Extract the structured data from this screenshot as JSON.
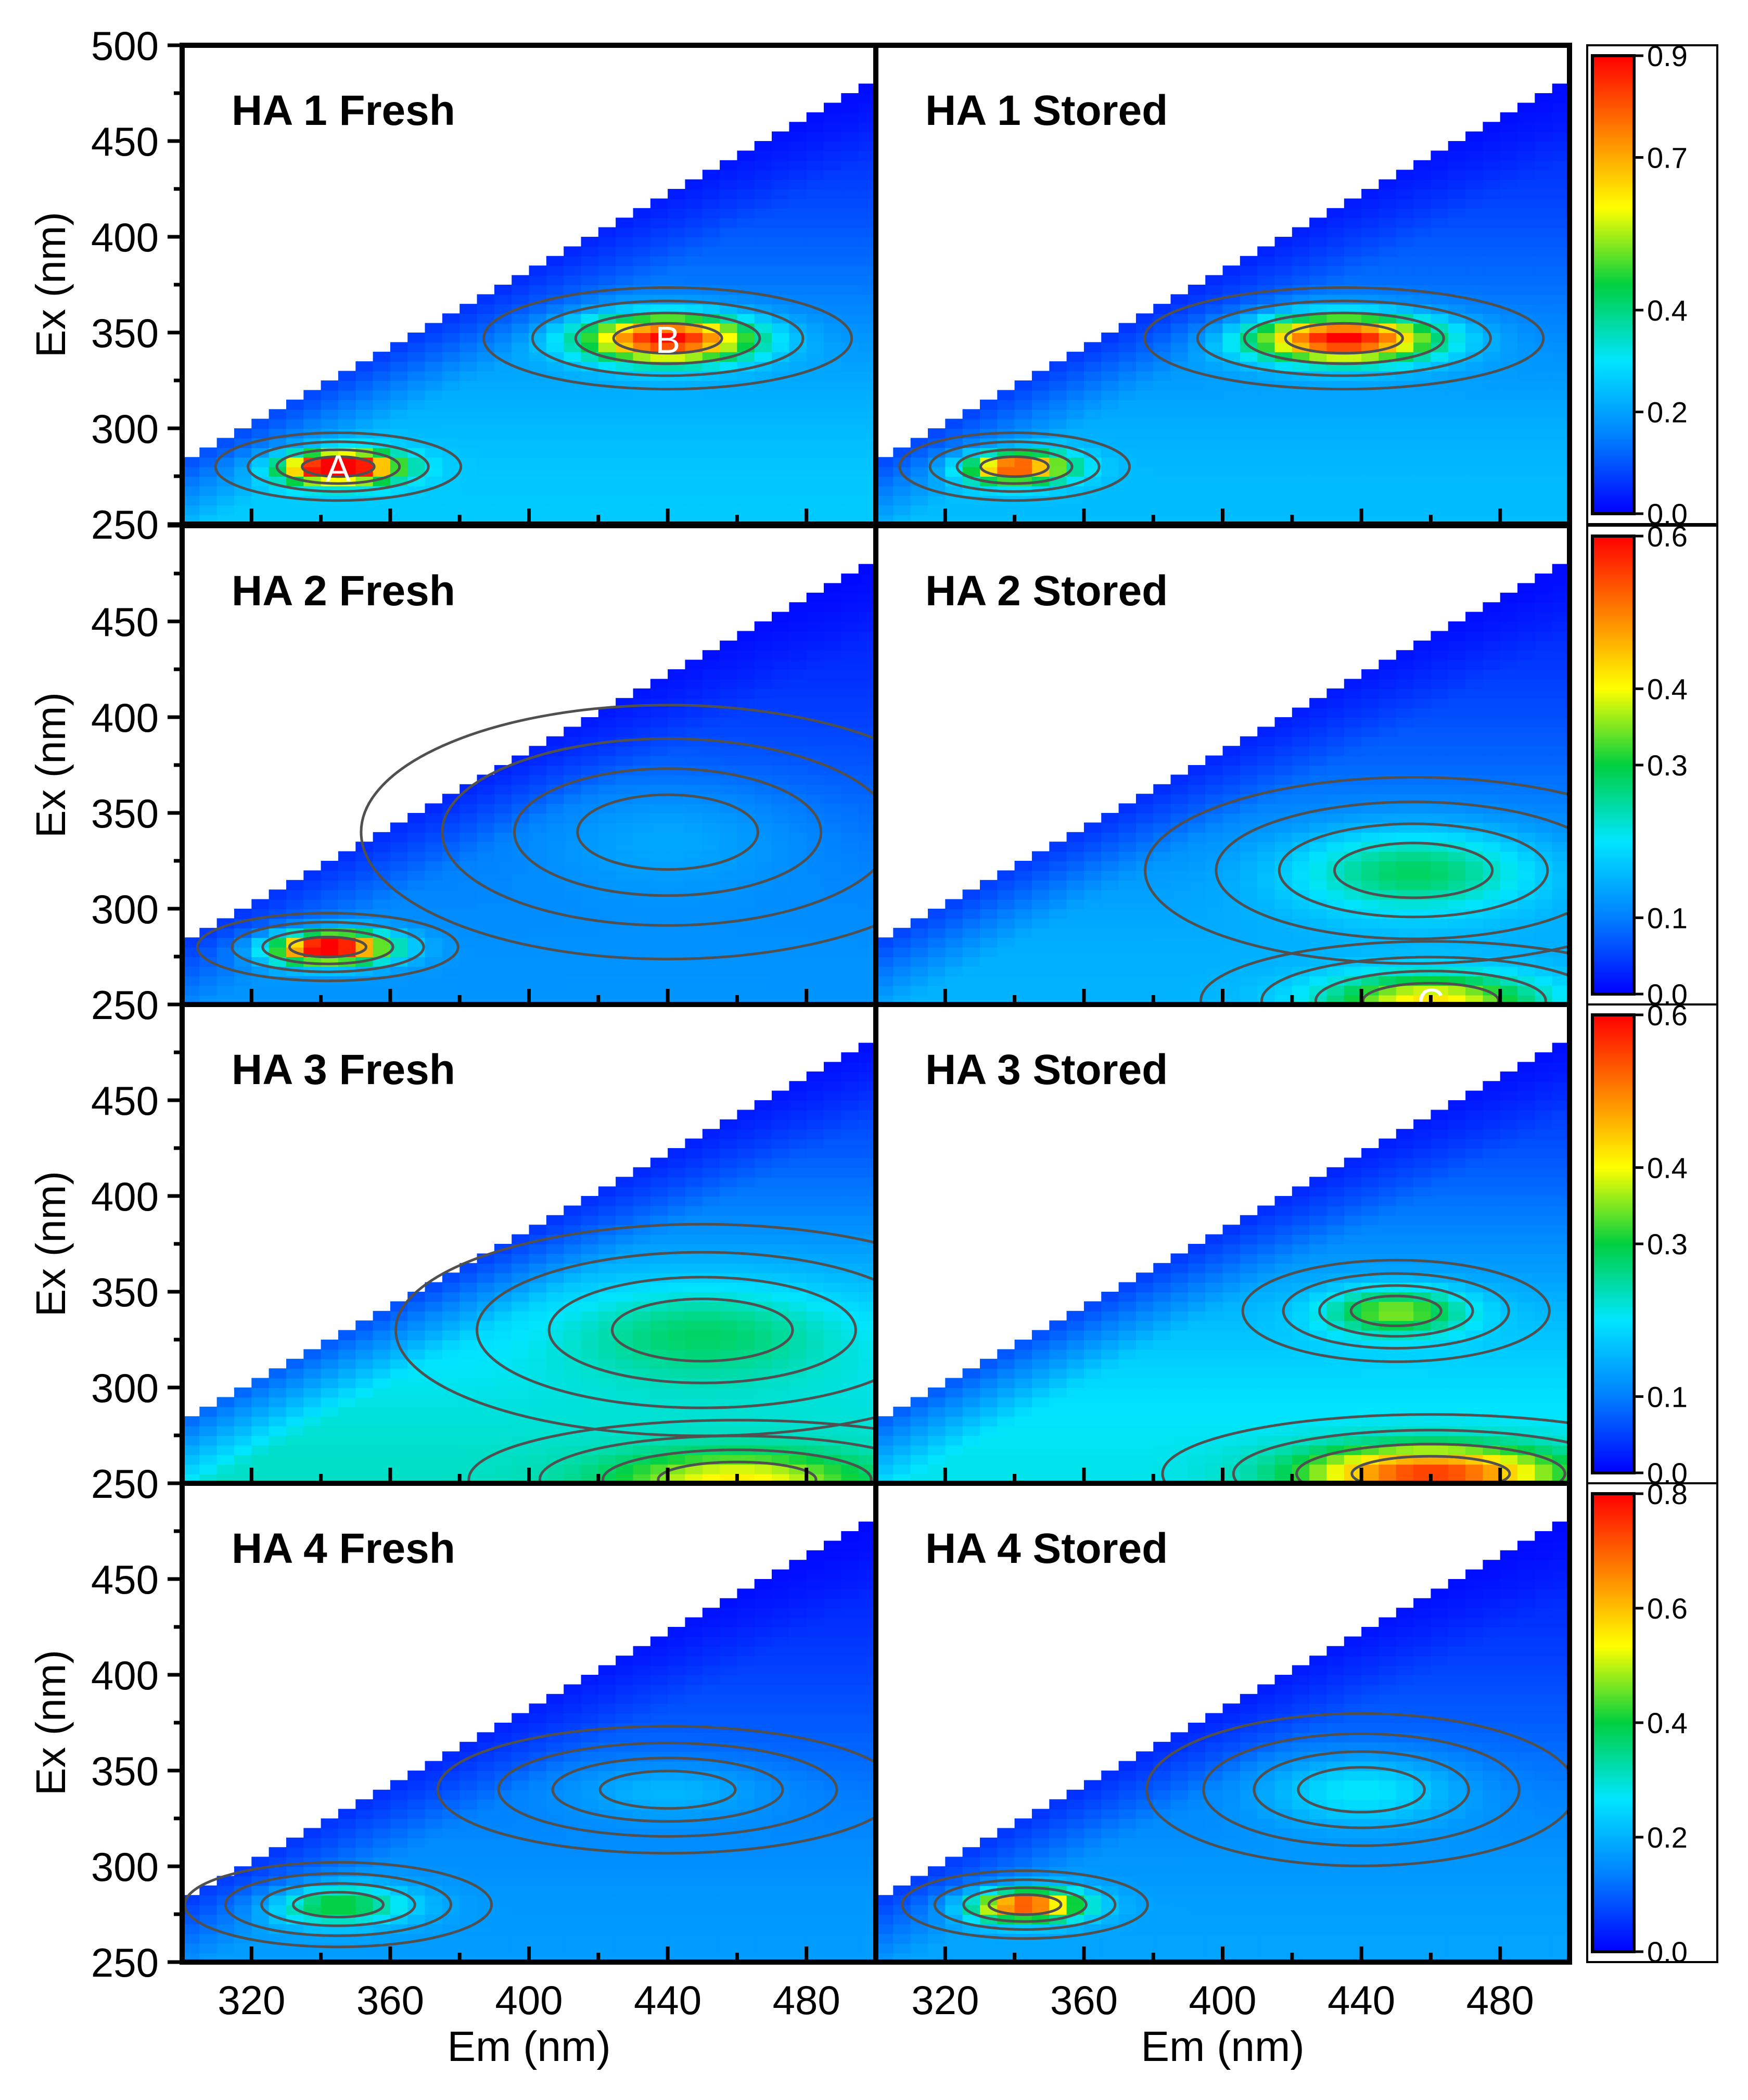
{
  "figure": {
    "x_axis_label": "Em (nm)",
    "y_axis_label": "Ex (nm)"
  },
  "colormap": [
    "#0000ff",
    "#0080ff",
    "#00e5ff",
    "#00d040",
    "#ffff00",
    "#ff8000",
    "#ff0000"
  ],
  "chart_data": [
    {
      "type": "heatmap",
      "title": "HA 1 Fresh",
      "xlabel": "",
      "ylabel": "Ex (nm)",
      "xlim": [
        300,
        500
      ],
      "ylim": [
        250,
        500
      ],
      "xticks": [],
      "yticks": [
        "250",
        "300",
        "350",
        "400",
        "450",
        "500"
      ],
      "zlim": [
        0,
        0.9
      ],
      "base": 0.26,
      "peaks": [
        {
          "label": "A",
          "em": 345,
          "ex": 280,
          "value": 0.85,
          "wx": 16,
          "wy": 8
        },
        {
          "label": "B",
          "em": 440,
          "ex": 347,
          "value": 0.72,
          "wx": 24,
          "wy": 12
        }
      ]
    },
    {
      "type": "heatmap",
      "title": "HA 1 Stored",
      "xlabel": "",
      "ylabel": "",
      "xlim": [
        300,
        500
      ],
      "ylim": [
        250,
        500
      ],
      "xticks": [],
      "yticks": [],
      "zlim": [
        0,
        0.9
      ],
      "base": 0.24,
      "peaks": [
        {
          "label": "",
          "em": 340,
          "ex": 280,
          "value": 0.62,
          "wx": 15,
          "wy": 8
        },
        {
          "label": "",
          "em": 435,
          "ex": 347,
          "value": 0.74,
          "wx": 26,
          "wy": 12
        }
      ],
      "colorbar": {
        "min": 0,
        "max": 0.9,
        "ticks": [
          "0.0",
          "0.2",
          "0.4",
          "0.7",
          "0.9"
        ],
        "tick_values": [
          0.0,
          0.2,
          0.4,
          0.7,
          0.9
        ]
      }
    },
    {
      "type": "heatmap",
      "title": "HA 2 Fresh",
      "xlabel": "",
      "ylabel": "Ex (nm)",
      "xlim": [
        300,
        500
      ],
      "ylim": [
        250,
        500
      ],
      "xticks": [],
      "yticks": [
        "250",
        "300",
        "350",
        "400",
        "450"
      ],
      "zlim": [
        0,
        0.6
      ],
      "base": 0.12,
      "peaks": [
        {
          "label": "",
          "em": 342,
          "ex": 280,
          "value": 0.56,
          "wx": 17,
          "wy": 8
        },
        {
          "label": "",
          "em": 440,
          "ex": 340,
          "value": 0.05,
          "wx": 40,
          "wy": 30
        }
      ]
    },
    {
      "type": "heatmap",
      "title": "HA 2 Stored",
      "xlabel": "",
      "ylabel": "",
      "xlim": [
        300,
        500
      ],
      "ylim": [
        250,
        500
      ],
      "xticks": [],
      "yticks": [],
      "zlim": [
        0,
        0.6
      ],
      "base": 0.15,
      "peaks": [
        {
          "label": "",
          "em": 455,
          "ex": 320,
          "value": 0.16,
          "wx": 35,
          "wy": 22
        },
        {
          "label": "C",
          "em": 460,
          "ex": 252,
          "value": 0.27,
          "wx": 30,
          "wy": 14
        }
      ],
      "colorbar": {
        "min": 0,
        "max": 0.6,
        "ticks": [
          "0.0",
          "0.1",
          "0.3",
          "0.4",
          "0.6"
        ],
        "tick_values": [
          0.0,
          0.1,
          0.3,
          0.4,
          0.6
        ]
      }
    },
    {
      "type": "heatmap",
      "title": "HA 3 Fresh",
      "xlabel": "",
      "ylabel": "Ex (nm)",
      "xlim": [
        300,
        500
      ],
      "ylim": [
        250,
        500
      ],
      "xticks": [],
      "yticks": [
        "250",
        "300",
        "350",
        "400",
        "450"
      ],
      "zlim": [
        0,
        0.6
      ],
      "base": 0.23,
      "peaks": [
        {
          "label": "",
          "em": 450,
          "ex": 330,
          "value": 0.1,
          "wx": 40,
          "wy": 25
        },
        {
          "label": "",
          "em": 460,
          "ex": 252,
          "value": 0.18,
          "wx": 35,
          "wy": 14
        }
      ]
    },
    {
      "type": "heatmap",
      "title": "HA 3 Stored",
      "xlabel": "",
      "ylabel": "",
      "xlim": [
        300,
        500
      ],
      "ylim": [
        250,
        500
      ],
      "xticks": [],
      "yticks": [],
      "zlim": [
        0,
        0.6
      ],
      "base": 0.21,
      "peaks": [
        {
          "label": "",
          "em": 450,
          "ex": 340,
          "value": 0.2,
          "wx": 20,
          "wy": 12
        },
        {
          "label": "",
          "em": 460,
          "ex": 255,
          "value": 0.35,
          "wx": 35,
          "wy": 14
        }
      ],
      "colorbar": {
        "min": 0,
        "max": 0.6,
        "ticks": [
          "0.0",
          "0.1",
          "0.3",
          "0.4",
          "0.6"
        ],
        "tick_values": [
          0.0,
          0.1,
          0.3,
          0.4,
          0.6
        ]
      }
    },
    {
      "type": "heatmap",
      "title": "HA 4 Fresh",
      "xlabel": "Em (nm)",
      "ylabel": "Ex (nm)",
      "xlim": [
        300,
        500
      ],
      "ylim": [
        250,
        500
      ],
      "xticks": [
        "320",
        "360",
        "400",
        "440",
        "480"
      ],
      "yticks": [
        "250",
        "300",
        "350",
        "400",
        "450"
      ],
      "zlim": [
        0,
        0.8
      ],
      "base": 0.17,
      "peaks": [
        {
          "label": "",
          "em": 345,
          "ex": 280,
          "value": 0.25,
          "wx": 20,
          "wy": 10
        },
        {
          "label": "",
          "em": 440,
          "ex": 340,
          "value": 0.08,
          "wx": 30,
          "wy": 15
        }
      ]
    },
    {
      "type": "heatmap",
      "title": "HA 4 Stored",
      "xlabel": "Em (nm)",
      "ylabel": "",
      "xlim": [
        300,
        500
      ],
      "ylim": [
        250,
        500
      ],
      "xticks": [
        "320",
        "360",
        "400",
        "440",
        "480"
      ],
      "yticks": [],
      "zlim": [
        0,
        0.8
      ],
      "base": 0.18,
      "peaks": [
        {
          "label": "",
          "em": 343,
          "ex": 280,
          "value": 0.58,
          "wx": 16,
          "wy": 8
        },
        {
          "label": "",
          "em": 440,
          "ex": 340,
          "value": 0.14,
          "wx": 28,
          "wy": 18
        }
      ],
      "colorbar": {
        "min": 0,
        "max": 0.8,
        "ticks": [
          "0.0",
          "0.2",
          "0.4",
          "0.6",
          "0.8"
        ],
        "tick_values": [
          0.0,
          0.2,
          0.4,
          0.6,
          0.8
        ]
      }
    }
  ]
}
